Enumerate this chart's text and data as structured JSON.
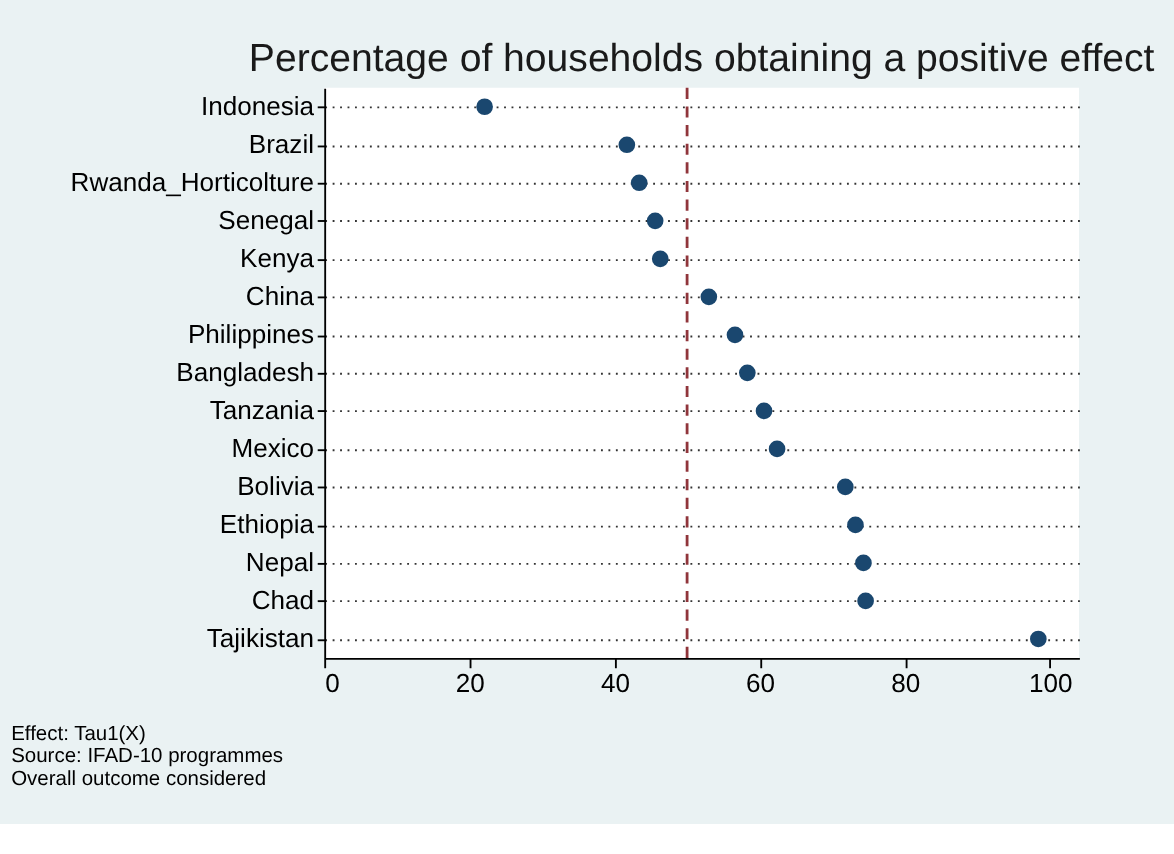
{
  "chart_data": {
    "type": "scatter",
    "orientation": "horizontal",
    "title": "Percentage of households obtaining a positive effect",
    "categories": [
      "Indonesia",
      "Brazil",
      "Rwanda_Horticolture",
      "Senegal",
      "Kenya",
      "China",
      "Philippines",
      "Bangladesh",
      "Tanzania",
      "Mexico",
      "Bolivia",
      "Ethiopia",
      "Nepal",
      "Chad",
      "Tajikistan"
    ],
    "values": [
      22.1,
      41.7,
      43.4,
      45.6,
      46.3,
      53.0,
      56.6,
      58.3,
      60.6,
      62.4,
      71.8,
      73.2,
      74.3,
      74.6,
      98.4
    ],
    "color": "#1a476f",
    "marker": "circle",
    "xlim": [
      0,
      104
    ],
    "xticks": [
      0,
      20,
      40,
      60,
      80,
      100
    ],
    "grid": "y",
    "ref_lines": [
      {
        "axis": "x",
        "value": 50,
        "color": "#90353b",
        "line_style": "dashed"
      }
    ],
    "annotations": [
      "Effect: Tau1(X)",
      "Source: IFAD-10 programmes",
      "Overall outcome considered"
    ]
  }
}
